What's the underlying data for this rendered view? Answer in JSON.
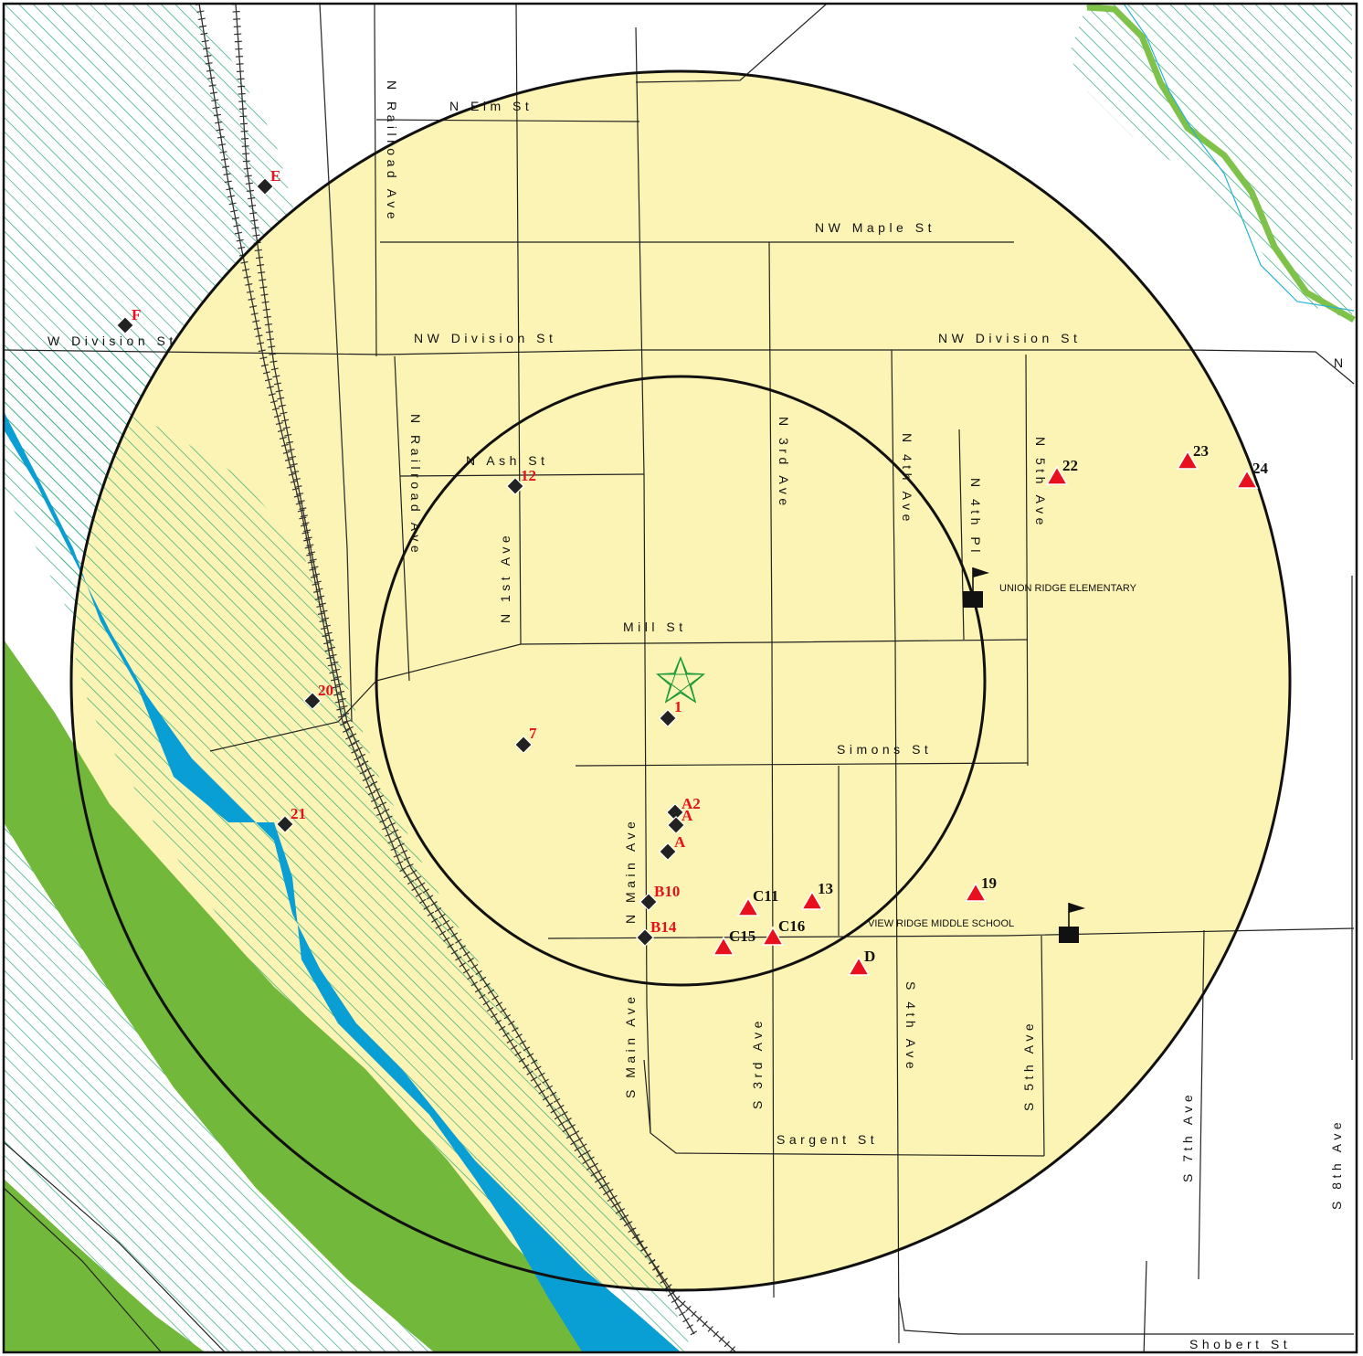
{
  "colors": {
    "buffer_fill": "#fcf4b4",
    "river": "#0a9fd4",
    "floodplain": "#72b83a",
    "hatch": "#2ea876",
    "creek_line": "#7fc24a",
    "creek_channel": "#27b3d6",
    "road": "#222222",
    "red_label": "#e8101c",
    "triangle": "#e8101c",
    "star": "#1f9a3a"
  },
  "streets": {
    "elm": "N Elm St",
    "maple": "NW Maple St",
    "w_division": "W Division St",
    "nw_division_a": "NW Division St",
    "nw_division_b": "NW Division St",
    "n_railroad_top": "N Railroad Ave",
    "n_railroad_mid": "N Railroad Ave",
    "ash": "N Ash St",
    "n_1st": "N 1st Ave",
    "mill": "Mill St",
    "n_3rd": "N 3rd Ave",
    "n_4th_ave": "N 4th Ave",
    "n_4th_pl": "N 4th Pl",
    "n_5th": "N 5th Ave",
    "simons": "Simons St",
    "n_main": "N Main Ave",
    "s_main": "S Main Ave",
    "s_3rd": "S 3rd Ave",
    "s_4th": "S 4th Ave",
    "s_5th": "S 5th Ave",
    "sargent": "Sargent St",
    "s_7th": "S 7th Ave",
    "s_8th": "S 8th Ave",
    "shobert": "Shobert St",
    "edge_n": "N"
  },
  "schools": {
    "union_ridge": "UNION RIDGE ELEMENTARY",
    "view_ridge": "VIEW RIDGE MIDDLE SCHOOL"
  },
  "sites": {
    "s1": "1",
    "s7": "7",
    "s12": "12",
    "s20": "20",
    "s21": "21",
    "sE": "E",
    "sF": "F",
    "sA2": "A2",
    "sA1": "A",
    "sA": "A",
    "sB10": "B10",
    "sB14": "B14",
    "sC11": "C11",
    "sC15": "C15",
    "sC16": "C16",
    "s13": "13",
    "s19": "19",
    "sD": "D",
    "s22": "22",
    "s23": "23",
    "s24": "24"
  },
  "icons": {
    "center": "star-icon",
    "diamond": "diamond-marker-icon",
    "triangle": "triangle-marker-icon",
    "school": "school-flag-icon"
  }
}
